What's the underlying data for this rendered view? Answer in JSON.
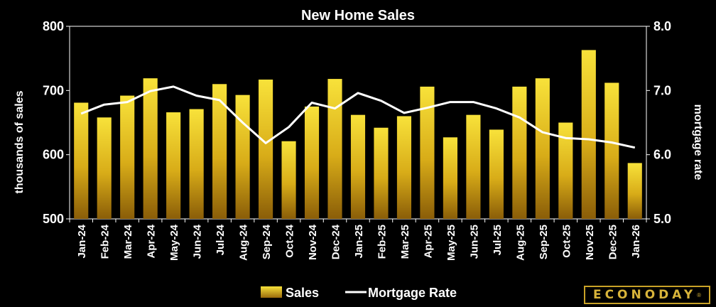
{
  "chart_data": {
    "type": "bar",
    "title": "New Home Sales",
    "ylabel": "thousands of sales",
    "y2label": "mortgage rate",
    "ylim": [
      500,
      800
    ],
    "y2lim": [
      5.0,
      8.0
    ],
    "yticks": [
      "800",
      "700",
      "600",
      "500"
    ],
    "y2ticks": [
      "8.0",
      "7.0",
      "6.0",
      "5.0"
    ],
    "categories": [
      "Jan-24",
      "Feb-24",
      "Mar-24",
      "Apr-24",
      "May-24",
      "Jun-24",
      "Jul-24",
      "Aug-24",
      "Sep-24",
      "Oct-24",
      "Nov-24",
      "Dec-24",
      "Jan-25",
      "Feb-25",
      "Mar-25",
      "Apr-25",
      "May-25",
      "Jun-25",
      "Jul-25",
      "Aug-25",
      "Sep-25",
      "Oct-25",
      "Nov-25",
      "Dec-25",
      "Jan-26"
    ],
    "series": [
      {
        "name": "Sales",
        "type": "bar",
        "axis": "left",
        "values": [
          681,
          658,
          692,
          719,
          666,
          671,
          710,
          693,
          717,
          621,
          675,
          718,
          662,
          642,
          660,
          706,
          627,
          662,
          639,
          706,
          719,
          650,
          763,
          712,
          587
        ]
      },
      {
        "name": "Mortgage Rate",
        "type": "line",
        "axis": "right",
        "values": [
          6.64,
          6.78,
          6.82,
          6.99,
          7.06,
          6.92,
          6.85,
          6.5,
          6.18,
          6.43,
          6.81,
          6.72,
          6.96,
          6.84,
          6.65,
          6.73,
          6.82,
          6.82,
          6.72,
          6.58,
          6.35,
          6.26,
          6.24,
          6.19,
          6.11
        ]
      }
    ],
    "legend_position": "bottom",
    "grid": false,
    "colors": {
      "bars_top": "#f7df38",
      "bars_bottom": "#9a6a0c",
      "line": "#ffffff",
      "background": "#000000"
    }
  },
  "brand": {
    "name": "ECONODAY",
    "mark": "®"
  }
}
